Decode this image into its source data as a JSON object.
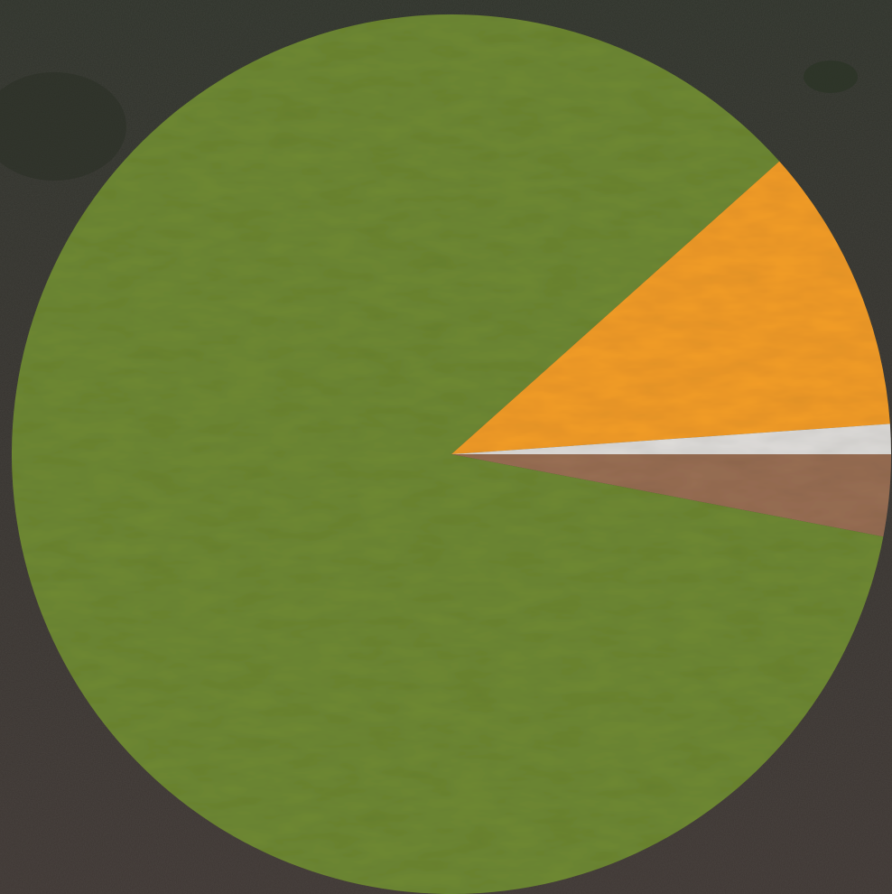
{
  "chart_data": {
    "type": "pie",
    "title": "",
    "start_angle_deg": 0,
    "direction": "clockwise",
    "slices": [
      {
        "label": "",
        "value": 3.0,
        "color": "#9a6f55"
      },
      {
        "label": "",
        "value": 85.4,
        "color": "#6f8a35"
      },
      {
        "label": "",
        "value": 10.5,
        "color": "#f49e2c"
      },
      {
        "label": "",
        "value": 1.1,
        "color": "#e0dedb"
      }
    ],
    "legend": "none"
  },
  "background": {
    "description_colors": {
      "ground": "#3b3531",
      "vegetation": "#2f3329"
    }
  }
}
